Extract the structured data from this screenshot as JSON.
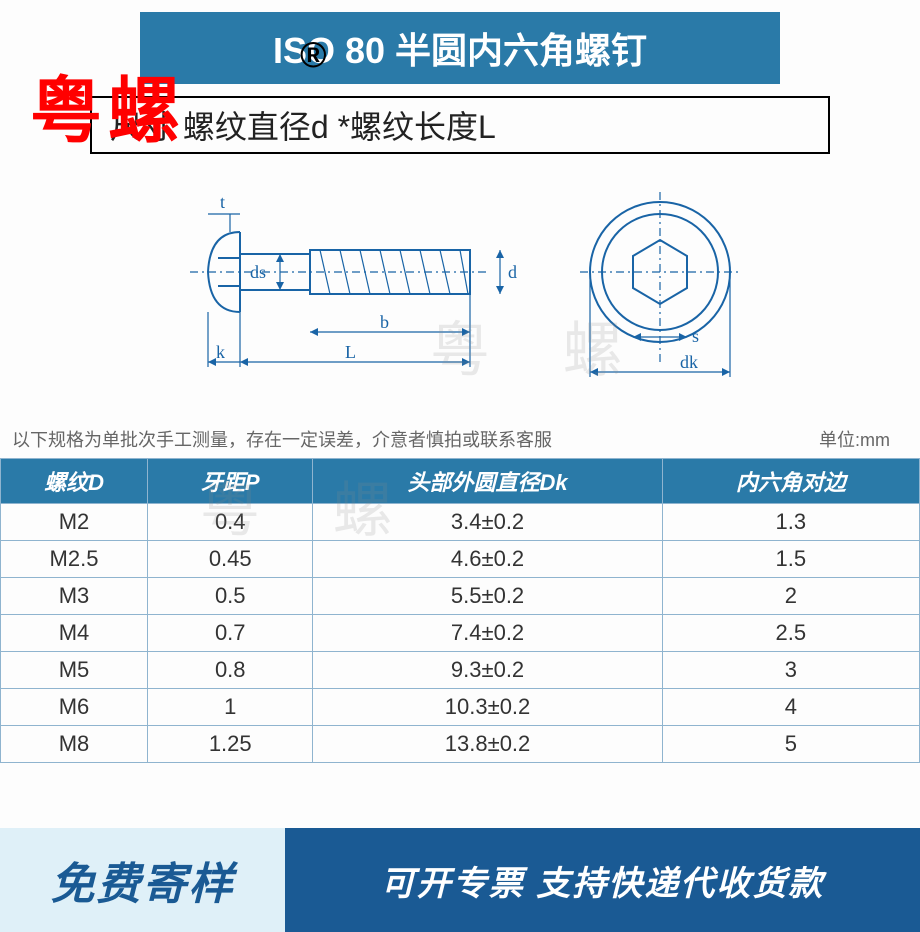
{
  "title": "ISO  80 半圆内六角螺钉",
  "reg_mark": "®",
  "watermark_red": "粤螺",
  "subtitle": "尺寸   螺纹直径d *螺纹长度L",
  "diagram": {
    "labels": {
      "t": "t",
      "ds": "ds",
      "b": "b",
      "L": "L",
      "k": "k",
      "d": "d",
      "s": "s",
      "dk": "dk"
    },
    "line_color": "#1964a6",
    "line_width": 2
  },
  "note_left": "以下规格为单批次手工测量，存在一定误差，介意者慎拍或联系客服",
  "note_right": "单位:mm",
  "watermark_gray": "粤 螺",
  "table": {
    "columns": [
      "螺纹D",
      "牙距P",
      "头部外圆直径Dk",
      "内六角对边"
    ],
    "col_widths": [
      "16%",
      "18%",
      "38%",
      "28%"
    ],
    "rows": [
      [
        "M2",
        "0.4",
        "3.4±0.2",
        "1.3"
      ],
      [
        "M2.5",
        "0.45",
        "4.6±0.2",
        "1.5"
      ],
      [
        "M3",
        "0.5",
        "5.5±0.2",
        "2"
      ],
      [
        "M4",
        "0.7",
        "7.4±0.2",
        "2.5"
      ],
      [
        "M5",
        "0.8",
        "9.3±0.2",
        "3"
      ],
      [
        "M6",
        "1",
        "10.3±0.2",
        "4"
      ],
      [
        "M8",
        "1.25",
        "13.8±0.2",
        "5"
      ]
    ],
    "header_bg": "#2a7aa8",
    "border_color": "#8fb4cf"
  },
  "footer": {
    "left": "免费寄样",
    "right": "可开专票 支持快递代收货款",
    "left_bg": "#dff0f8",
    "right_bg": "#1a5a94"
  }
}
